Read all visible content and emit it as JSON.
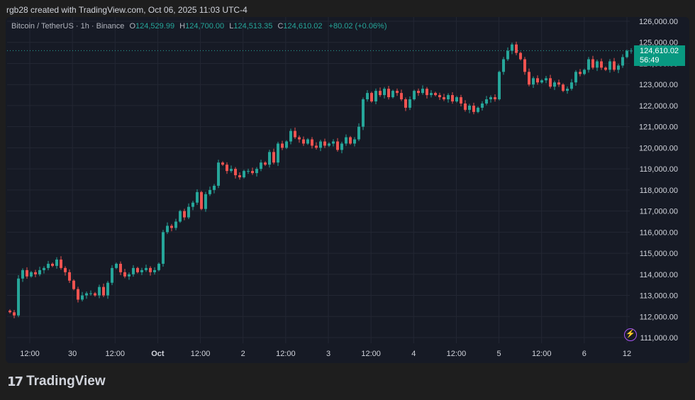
{
  "attribution": "rgb28 created with TradingView.com, Oct 06, 2025 11:03 UTC-4",
  "symbol": "Bitcoin / TetherUS · 1h · Binance",
  "ohlc": {
    "o_label": "O",
    "o": "124,529.99",
    "h_label": "H",
    "h": "124,700.00",
    "l_label": "L",
    "l": "124,513.35",
    "c_label": "C",
    "c": "124,610.02",
    "change": "+80.02 (+0.06%)"
  },
  "price_badge": {
    "price": "124,610.02",
    "countdown": "56:49"
  },
  "logo_text": "TradingView",
  "colors": {
    "up": "#26a69a",
    "down": "#ef5350",
    "background": "#161a25",
    "grid": "#232733",
    "badge": "#089981"
  },
  "chart_data": {
    "type": "candlestick",
    "title": "Bitcoin / TetherUS · 1h · Binance",
    "y_ticks": [
      "126,000.00",
      "125,000.00",
      "124,000.00",
      "123,000.00",
      "122,000.00",
      "121,000.00",
      "120,000.00",
      "119,000.00",
      "118,000.00",
      "117,000.00",
      "116,000.00",
      "115,000.00",
      "114,000.00",
      "113,000.00",
      "112,000.00",
      "111,000.00"
    ],
    "x_ticks": [
      "12:00",
      "30",
      "12:00",
      "Oct",
      "12:00",
      "2",
      "12:00",
      "3",
      "12:00",
      "4",
      "12:00",
      "5",
      "12:00",
      "6",
      "12"
    ],
    "ylim": [
      110800,
      126400
    ],
    "grid": true,
    "last_price": 124610.02,
    "close_series": [
      112200,
      112050,
      113800,
      114200,
      113900,
      114100,
      114000,
      114200,
      114300,
      114500,
      114400,
      114700,
      114300,
      114100,
      113700,
      113300,
      112800,
      113000,
      113100,
      113100,
      113000,
      113400,
      113000,
      113600,
      114300,
      114500,
      114100,
      113900,
      114000,
      114300,
      114100,
      114200,
      114300,
      114100,
      114200,
      114500,
      116000,
      116300,
      116200,
      116500,
      117000,
      116700,
      117200,
      117400,
      117900,
      117100,
      117800,
      118000,
      118200,
      119300,
      119200,
      118900,
      119000,
      118700,
      118600,
      118900,
      118900,
      118800,
      119000,
      119300,
      119200,
      119800,
      119300,
      120200,
      120000,
      120300,
      120800,
      120500,
      120400,
      120200,
      120400,
      120100,
      120000,
      120300,
      120100,
      120200,
      120300,
      119900,
      120200,
      120500,
      120200,
      120400,
      121000,
      122300,
      122600,
      122200,
      122700,
      122500,
      122800,
      122400,
      122700,
      122600,
      122300,
      121900,
      122300,
      122700,
      122600,
      122800,
      122500,
      122600,
      122500,
      122400,
      122300,
      122500,
      122200,
      122400,
      122100,
      121800,
      122000,
      121700,
      121900,
      122100,
      122300,
      122400,
      122300,
      123600,
      124200,
      124600,
      124900,
      124500,
      124200,
      123600,
      123000,
      123300,
      123100,
      123200,
      123300,
      122900,
      123100,
      123000,
      122700,
      122800,
      123100,
      123600,
      123500,
      123700,
      124200,
      123800,
      124100,
      123800,
      123700,
      124100,
      123700,
      123900,
      124300,
      124600,
      124610
    ]
  }
}
